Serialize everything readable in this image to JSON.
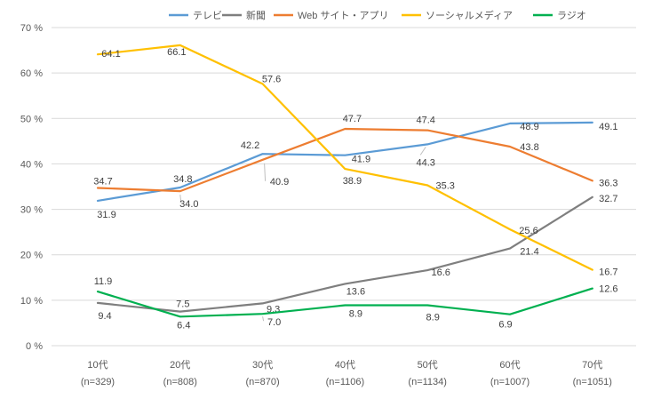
{
  "chart_data": {
    "type": "line",
    "title": "",
    "categories": [
      "10代",
      "20代",
      "30代",
      "40代",
      "50代",
      "60代",
      "70代"
    ],
    "category_sublabels": [
      "(n=329)",
      "(n=808)",
      "(n=870)",
      "(n=1106)",
      "(n=1134)",
      "(n=1007)",
      "(n=1051)"
    ],
    "ylim": [
      0,
      70
    ],
    "yticks": [
      {
        "value": 0,
        "label": "0 %"
      },
      {
        "value": 10,
        "label": "10 %"
      },
      {
        "value": 20,
        "label": "20 %"
      },
      {
        "value": 30,
        "label": "30 %"
      },
      {
        "value": 40,
        "label": "40 %"
      },
      {
        "value": 50,
        "label": "50 %"
      },
      {
        "value": 60,
        "label": "60 %"
      },
      {
        "value": 70,
        "label": "70 %"
      }
    ],
    "grid": "horizontal",
    "legend_position": "top",
    "series": [
      {
        "id": "tv",
        "name": "テレビ",
        "color": "#5B9BD5",
        "values": [
          31.9,
          34.8,
          42.2,
          41.9,
          44.3,
          48.9,
          49.1
        ],
        "label_offsets": [
          [
            10,
            19
          ],
          [
            3,
            -6
          ],
          [
            -14,
            -6
          ],
          [
            18,
            8
          ],
          [
            -2,
            24
          ],
          [
            22,
            7
          ],
          [
            18,
            8
          ]
        ],
        "leaders": {
          "4": [
            [
              -2,
              3
            ],
            [
              -8,
              12
            ]
          ]
        }
      },
      {
        "id": "newspaper",
        "name": "新聞",
        "color": "#7F7F7F",
        "values": [
          9.4,
          7.5,
          9.3,
          13.6,
          16.6,
          21.4,
          32.7
        ],
        "label_offsets": [
          [
            8,
            18
          ],
          [
            3,
            -5
          ],
          [
            12,
            10
          ],
          [
            12,
            12
          ],
          [
            15,
            6
          ],
          [
            22,
            7
          ],
          [
            18,
            5
          ]
        ]
      },
      {
        "id": "web",
        "name": "Web サイト・アプリ",
        "color": "#ED7D31",
        "values": [
          34.7,
          34.0,
          40.9,
          47.7,
          47.4,
          43.8,
          36.3
        ],
        "label_offsets": [
          [
            6,
            -4
          ],
          [
            10,
            18
          ],
          [
            19,
            28
          ],
          [
            8,
            -8
          ],
          [
            -2,
            -8
          ],
          [
            22,
            4
          ],
          [
            18,
            6
          ]
        ],
        "leaders": {
          "1": [
            [
              0,
              4
            ],
            [
              1,
              13
            ]
          ],
          "2": [
            [
              2,
              4
            ],
            [
              3,
              24
            ]
          ]
        }
      },
      {
        "id": "social",
        "name": "ソーシャルメディア",
        "color": "#FFC000",
        "values": [
          64.1,
          66.1,
          57.6,
          38.9,
          35.3,
          25.6,
          16.7
        ],
        "label_offsets": [
          [
            15,
            3
          ],
          [
            -4,
            11
          ],
          [
            10,
            -2
          ],
          [
            8,
            17
          ],
          [
            20,
            4
          ],
          [
            21,
            5
          ],
          [
            18,
            6
          ]
        ]
      },
      {
        "id": "radio",
        "name": "ラジオ",
        "color": "#00B050",
        "values": [
          11.9,
          6.4,
          7.0,
          8.9,
          8.9,
          6.9,
          12.6
        ],
        "label_offsets": [
          [
            6,
            -8
          ],
          [
            4,
            13
          ],
          [
            13,
            13
          ],
          [
            12,
            13
          ],
          [
            6,
            17
          ],
          [
            -5,
            15
          ],
          [
            18,
            4
          ]
        ],
        "leaders": {
          "2": [
            [
              0,
              3
            ],
            [
              1,
              8
            ]
          ]
        }
      }
    ]
  },
  "colors": {
    "background": "#FFFFFF",
    "gridline": "#D9D9D9",
    "axis_text": "#595959",
    "data_label_text": "#404040",
    "leader_line": "#BFBFBF"
  }
}
